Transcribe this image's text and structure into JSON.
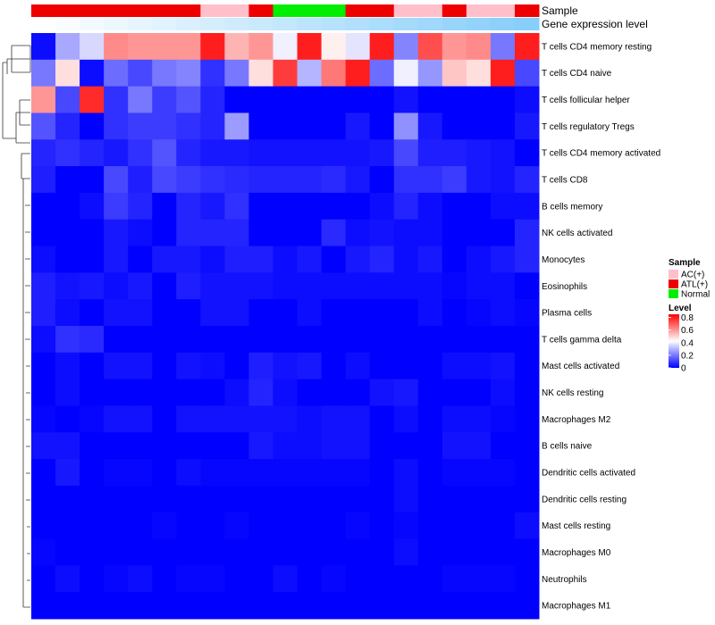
{
  "chart_data": {
    "type": "heatmap",
    "annotation_labels": [
      "Sample",
      "Gene expression level"
    ],
    "sample_legend": {
      "title": "Sample",
      "entries": [
        {
          "name": "AC(+)",
          "color": "#FFC0CB"
        },
        {
          "name": "ATL(+)",
          "color": "#EE0000"
        },
        {
          "name": "Normal",
          "color": "#00EE00"
        }
      ]
    },
    "level_legend": {
      "title": "Level",
      "ticks": [
        "0.8",
        "0.6",
        "0.4",
        "0.2",
        "0"
      ],
      "tick_values": [
        0.8,
        0.6,
        0.4,
        0.2,
        0
      ],
      "range": [
        0,
        0.85
      ]
    },
    "column_groups": [
      "ATL(+)",
      "ATL(+)",
      "ATL(+)",
      "ATL(+)",
      "ATL(+)",
      "ATL(+)",
      "ATL(+)",
      "AC(+)",
      "AC(+)",
      "ATL(+)",
      "Normal",
      "Normal",
      "Normal",
      "ATL(+)",
      "ATL(+)",
      "AC(+)",
      "AC(+)",
      "ATL(+)",
      "AC(+)",
      "AC(+)",
      "ATL(+)"
    ],
    "gene_expression_ramp": [
      "#FFFFFF",
      "#87CEFA"
    ],
    "rows": [
      "T cells CD4 memory resting",
      "T cells CD4 naive",
      "T cells follicular helper",
      "T cells regulatory  Tregs",
      "T cells CD4 memory activated",
      "T cells CD8",
      "B cells memory",
      "NK cells activated",
      "Monocytes",
      "Eosinophils",
      "Plasma cells",
      "T cells gamma delta",
      "Mast cells activated",
      "NK cells resting",
      "Macrophages M2",
      "B cells naive",
      "Dendritic cells activated",
      "Dendritic cells resting",
      "Mast cells resting",
      "Macrophages M0",
      "Neutrophils",
      "Macrophages M1"
    ],
    "values": [
      [
        0.02,
        0.28,
        0.36,
        0.62,
        0.6,
        0.6,
        0.6,
        0.8,
        0.55,
        0.6,
        0.4,
        0.8,
        0.45,
        0.38,
        0.8,
        0.22,
        0.72,
        0.6,
        0.62,
        0.2,
        0.8
      ],
      [
        0.2,
        0.48,
        0.02,
        0.18,
        0.12,
        0.2,
        0.22,
        0.08,
        0.2,
        0.48,
        0.75,
        0.3,
        0.65,
        0.8,
        0.18,
        0.4,
        0.25,
        0.52,
        0.48,
        0.8,
        0.12
      ],
      [
        0.6,
        0.12,
        0.78,
        0.08,
        0.2,
        0.1,
        0.14,
        0.06,
        0.0,
        0.0,
        0.0,
        0.0,
        0.0,
        0.0,
        0.0,
        0.03,
        0.0,
        0.0,
        0.0,
        0.0,
        0.02
      ],
      [
        0.14,
        0.06,
        0.0,
        0.08,
        0.1,
        0.1,
        0.08,
        0.06,
        0.26,
        0.0,
        0.0,
        0.0,
        0.0,
        0.04,
        0.0,
        0.24,
        0.04,
        0.0,
        0.0,
        0.0,
        0.04
      ],
      [
        0.06,
        0.08,
        0.06,
        0.04,
        0.08,
        0.14,
        0.06,
        0.04,
        0.04,
        0.03,
        0.03,
        0.03,
        0.03,
        0.03,
        0.04,
        0.12,
        0.05,
        0.05,
        0.04,
        0.03,
        0.0
      ],
      [
        0.05,
        0.0,
        0.0,
        0.12,
        0.05,
        0.12,
        0.1,
        0.08,
        0.07,
        0.06,
        0.06,
        0.06,
        0.07,
        0.04,
        0.0,
        0.08,
        0.08,
        0.1,
        0.04,
        0.03,
        0.06
      ],
      [
        0.0,
        0.0,
        0.02,
        0.1,
        0.06,
        0.0,
        0.06,
        0.04,
        0.08,
        0.0,
        0.0,
        0.0,
        0.0,
        0.0,
        0.02,
        0.06,
        0.02,
        0.0,
        0.0,
        0.02,
        0.02
      ],
      [
        0.0,
        0.0,
        0.0,
        0.04,
        0.02,
        0.0,
        0.06,
        0.06,
        0.06,
        0.0,
        0.0,
        0.0,
        0.07,
        0.02,
        0.03,
        0.02,
        0.02,
        0.0,
        0.0,
        0.0,
        0.06
      ],
      [
        0.02,
        0.0,
        0.0,
        0.04,
        0.0,
        0.04,
        0.04,
        0.02,
        0.05,
        0.05,
        0.02,
        0.04,
        0.0,
        0.04,
        0.06,
        0.02,
        0.04,
        0.0,
        0.02,
        0.04,
        0.06
      ],
      [
        0.05,
        0.03,
        0.04,
        0.02,
        0.04,
        0.0,
        0.05,
        0.03,
        0.03,
        0.03,
        0.02,
        0.02,
        0.02,
        0.02,
        0.02,
        0.02,
        0.02,
        0.01,
        0.02,
        0.02,
        0.0
      ],
      [
        0.05,
        0.02,
        0.0,
        0.03,
        0.03,
        0.0,
        0.0,
        0.03,
        0.03,
        0.0,
        0.0,
        0.02,
        0.0,
        0.0,
        0.0,
        0.0,
        0.02,
        0.0,
        0.01,
        0.02,
        0.01
      ],
      [
        0.02,
        0.08,
        0.07,
        0.0,
        0.0,
        0.0,
        0.0,
        0.0,
        0.0,
        0.0,
        0.0,
        0.0,
        0.0,
        0.0,
        0.0,
        0.0,
        0.0,
        0.0,
        0.0,
        0.0,
        0.0
      ],
      [
        0.0,
        0.02,
        0.0,
        0.03,
        0.03,
        0.0,
        0.03,
        0.02,
        0.0,
        0.05,
        0.03,
        0.04,
        0.0,
        0.02,
        0.0,
        0.0,
        0.0,
        0.02,
        0.02,
        0.03,
        0.0
      ],
      [
        0.0,
        0.02,
        0.0,
        0.0,
        0.0,
        0.0,
        0.0,
        0.0,
        0.02,
        0.06,
        0.02,
        0.0,
        0.0,
        0.0,
        0.03,
        0.04,
        0.0,
        0.0,
        0.0,
        0.02,
        0.0
      ],
      [
        0.01,
        0.0,
        0.01,
        0.03,
        0.03,
        0.0,
        0.03,
        0.03,
        0.03,
        0.03,
        0.03,
        0.02,
        0.03,
        0.03,
        0.0,
        0.02,
        0.0,
        0.02,
        0.02,
        0.01,
        0.0
      ],
      [
        0.03,
        0.03,
        0.0,
        0.0,
        0.0,
        0.0,
        0.0,
        0.0,
        0.0,
        0.04,
        0.02,
        0.02,
        0.03,
        0.03,
        0.0,
        0.0,
        0.0,
        0.03,
        0.03,
        0.0,
        0.0
      ],
      [
        0.0,
        0.04,
        0.0,
        0.01,
        0.01,
        0.0,
        0.02,
        0.01,
        0.01,
        0.01,
        0.01,
        0.01,
        0.01,
        0.01,
        0.0,
        0.02,
        0.0,
        0.01,
        0.01,
        0.01,
        0.0
      ],
      [
        0.0,
        0.0,
        0.0,
        0.0,
        0.0,
        0.0,
        0.0,
        0.0,
        0.0,
        0.0,
        0.0,
        0.0,
        0.0,
        0.0,
        0.0,
        0.02,
        0.0,
        0.0,
        0.0,
        0.0,
        0.0
      ],
      [
        0.0,
        0.0,
        0.0,
        0.0,
        0.0,
        0.01,
        0.0,
        0.0,
        0.01,
        0.0,
        0.0,
        0.0,
        0.0,
        0.01,
        0.0,
        0.01,
        0.0,
        0.0,
        0.0,
        0.0,
        0.02
      ],
      [
        0.01,
        0.0,
        0.0,
        0.0,
        0.0,
        0.0,
        0.0,
        0.0,
        0.0,
        0.0,
        0.0,
        0.0,
        0.0,
        0.0,
        0.0,
        0.02,
        0.0,
        0.0,
        0.0,
        0.0,
        0.0
      ],
      [
        0.0,
        0.02,
        0.0,
        0.01,
        0.02,
        0.0,
        0.01,
        0.01,
        0.0,
        0.0,
        0.02,
        0.0,
        0.01,
        0.0,
        0.0,
        0.0,
        0.0,
        0.01,
        0.01,
        0.01,
        0.0
      ],
      [
        0.0,
        0.0,
        0.0,
        0.0,
        0.0,
        0.0,
        0.0,
        0.0,
        0.0,
        0.0,
        0.0,
        0.0,
        0.0,
        0.0,
        0.0,
        0.0,
        0.0,
        0.0,
        0.0,
        0.0,
        0.0
      ]
    ]
  }
}
